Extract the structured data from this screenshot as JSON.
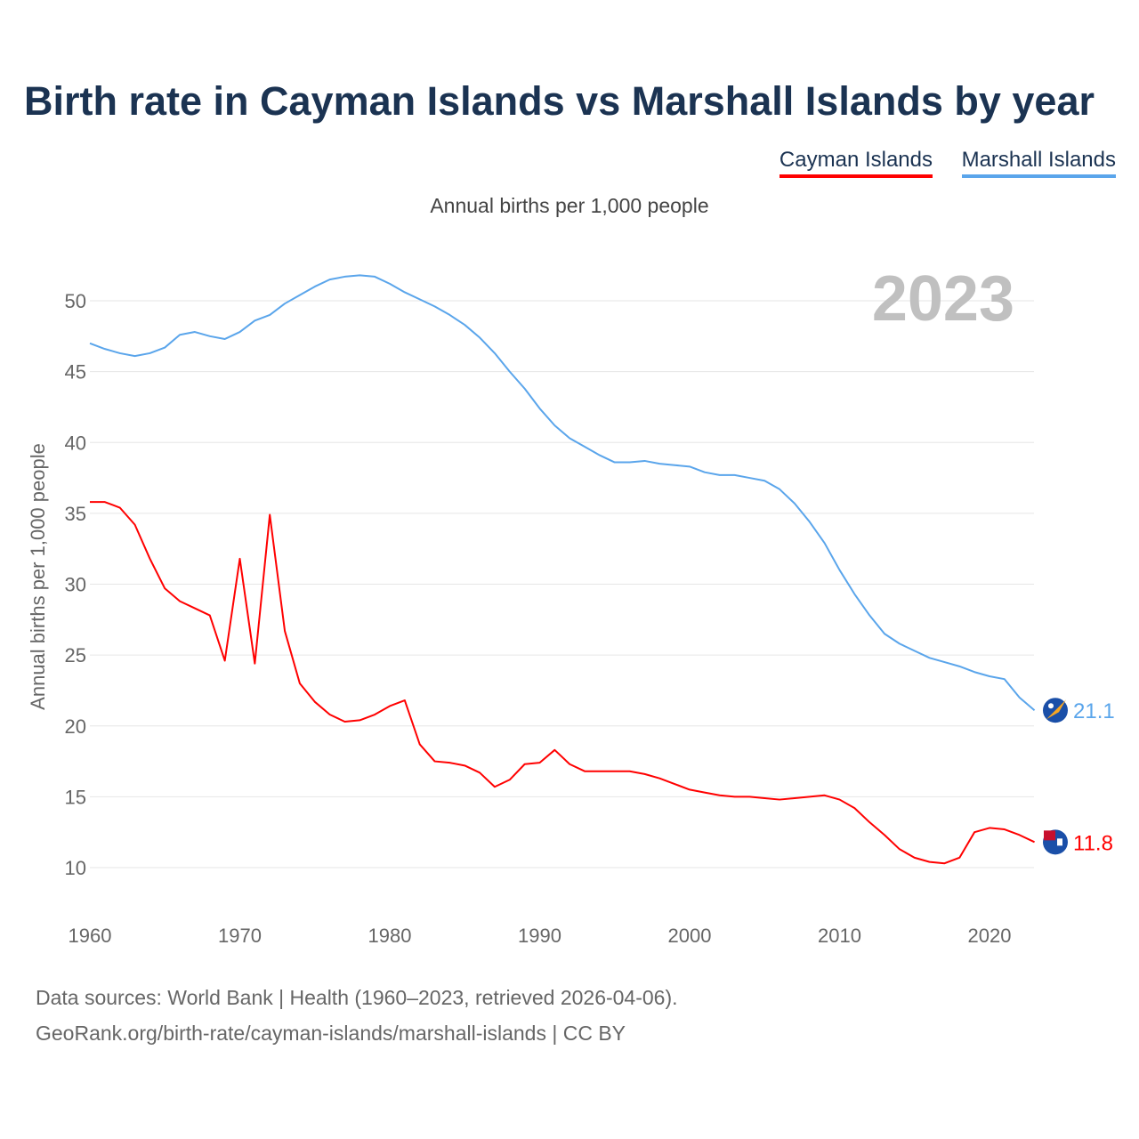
{
  "title": "Birth rate in Cayman Islands vs Marshall Islands by year",
  "subtitle": "Annual births per 1,000 people",
  "footer": {
    "line1": "Data sources: World Bank | Health (1960–2023, retrieved 2026-04-06).",
    "line2": "GeoRank.org/birth-rate/cayman-islands/marshall-islands | CC BY"
  },
  "chart_data": {
    "type": "line",
    "title": "Birth rate in Cayman Islands vs Marshall Islands by year",
    "ylabel": "Annual births per 1,000 people",
    "xlabel": "",
    "year_label": "2023",
    "xlim": [
      1960,
      2023
    ],
    "ylim": [
      7,
      53
    ],
    "xticks": [
      1960,
      1970,
      1980,
      1990,
      2000,
      2010,
      2020
    ],
    "yticks": [
      10,
      15,
      20,
      25,
      30,
      35,
      40,
      45,
      50
    ],
    "grid": true,
    "legend": "top-right",
    "x": [
      1960,
      1961,
      1962,
      1963,
      1964,
      1965,
      1966,
      1967,
      1968,
      1969,
      1970,
      1971,
      1972,
      1973,
      1974,
      1975,
      1976,
      1977,
      1978,
      1979,
      1980,
      1981,
      1982,
      1983,
      1984,
      1985,
      1986,
      1987,
      1988,
      1989,
      1990,
      1991,
      1992,
      1993,
      1994,
      1995,
      1996,
      1997,
      1998,
      1999,
      2000,
      2001,
      2002,
      2003,
      2004,
      2005,
      2006,
      2007,
      2008,
      2009,
      2010,
      2011,
      2012,
      2013,
      2014,
      2015,
      2016,
      2017,
      2018,
      2019,
      2020,
      2021,
      2022,
      2023
    ],
    "series": [
      {
        "name": "Cayman Islands",
        "color": "#ff0000",
        "end_label": "11.8",
        "values": [
          35.8,
          35.8,
          35.4,
          34.2,
          31.8,
          29.7,
          28.8,
          28.3,
          27.8,
          24.6,
          31.8,
          24.4,
          34.9,
          26.7,
          23.0,
          21.7,
          20.8,
          20.3,
          20.4,
          20.8,
          21.4,
          21.8,
          18.7,
          17.5,
          17.4,
          17.2,
          16.7,
          15.7,
          16.2,
          17.3,
          17.4,
          18.3,
          17.3,
          16.8,
          16.8,
          16.8,
          16.8,
          16.6,
          16.3,
          15.9,
          15.5,
          15.3,
          15.1,
          15.0,
          15.0,
          14.9,
          14.8,
          14.9,
          15.0,
          15.1,
          14.8,
          14.2,
          13.2,
          12.3,
          11.3,
          10.7,
          10.4,
          10.3,
          10.7,
          12.5,
          12.8,
          12.7,
          12.3,
          11.8
        ]
      },
      {
        "name": "Marshall Islands",
        "color": "#5aa5eb",
        "end_label": "21.1",
        "values": [
          47.0,
          46.6,
          46.3,
          46.1,
          46.3,
          46.7,
          47.6,
          47.8,
          47.5,
          47.3,
          47.8,
          48.6,
          49.0,
          49.8,
          50.4,
          51.0,
          51.5,
          51.7,
          51.8,
          51.7,
          51.2,
          50.6,
          50.1,
          49.6,
          49.0,
          48.3,
          47.4,
          46.3,
          45.0,
          43.8,
          42.4,
          41.2,
          40.3,
          39.7,
          39.1,
          38.6,
          38.6,
          38.7,
          38.5,
          38.4,
          38.3,
          37.9,
          37.7,
          37.7,
          37.5,
          37.3,
          36.7,
          35.7,
          34.4,
          32.9,
          31.0,
          29.3,
          27.8,
          26.5,
          25.8,
          25.3,
          24.8,
          24.5,
          24.2,
          23.8,
          23.5,
          23.3,
          22.0,
          21.1
        ]
      }
    ]
  }
}
